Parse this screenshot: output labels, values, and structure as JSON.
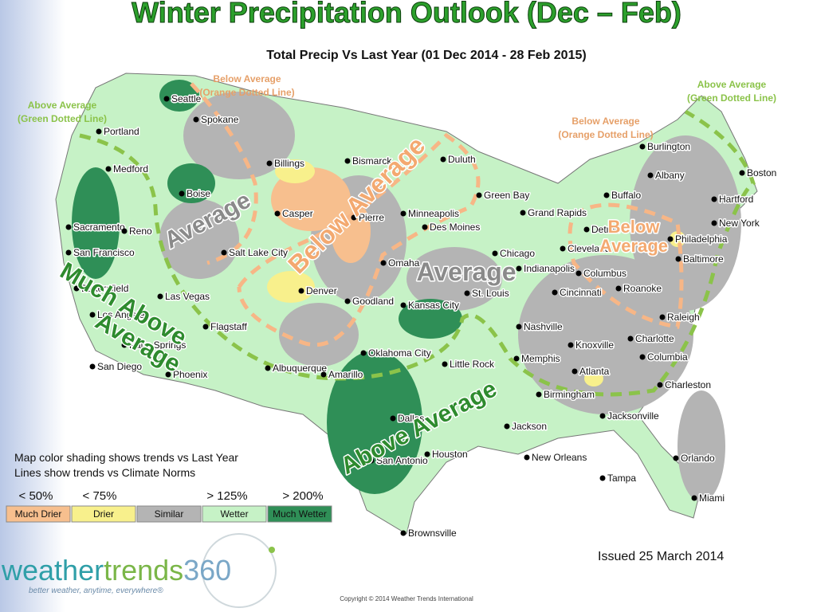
{
  "header": {
    "title": "Winter Precipitation Outlook (Dec – Feb)",
    "subtitle": "Total Precip Vs Last Year (01 Dec 2014 - 28 Feb 2015)"
  },
  "annotations": [
    {
      "lines": [
        "Below Average",
        "(Orange Dotted Line)"
      ]
    },
    {
      "lines": [
        "Above Average",
        "(Green Dotted Line)"
      ]
    },
    {
      "lines": [
        "Below Average",
        "(Orange Dotted Line)"
      ]
    },
    {
      "lines": [
        "Above Average",
        "(Green Dotted Line)"
      ]
    }
  ],
  "region_labels": [
    {
      "lines": [
        "Average"
      ]
    },
    {
      "lines": [
        "Below Average"
      ]
    },
    {
      "lines": [
        "Average"
      ]
    },
    {
      "lines": [
        "Below",
        "Average"
      ]
    },
    {
      "lines": [
        "Much Above",
        "Average"
      ]
    },
    {
      "lines": [
        "Above Average"
      ]
    }
  ],
  "cities": [
    "Seattle",
    "Portland",
    "Spokane",
    "Medford",
    "Boise",
    "Sacramento",
    "Reno",
    "San Francisco",
    "Bakersfield",
    "Las Vegas",
    "Los Angeles",
    "Flagstaff",
    "Palm Springs",
    "San Diego",
    "Phoenix",
    "Salt Lake City",
    "Billings",
    "Casper",
    "Bismarck",
    "Pierre",
    "Denver",
    "Goodland",
    "Albuquerque",
    "Amarillo",
    "Oklahoma City",
    "Dallas",
    "San Antonio",
    "Houston",
    "Brownsville",
    "Duluth",
    "Minneapolis",
    "Green Bay",
    "Des Moines",
    "Omaha",
    "Kansas City",
    "St. Louis",
    "Chicago",
    "Grand Rapids",
    "Detroit",
    "Indianapolis",
    "Cleveland",
    "Columbus",
    "Cincinnati",
    "Nashville",
    "Memphis",
    "Little Rock",
    "Knoxville",
    "Atlanta",
    "Birmingham",
    "Jackson",
    "New Orleans",
    "Jacksonville",
    "Orlando",
    "Tampa",
    "Miami",
    "Charleston",
    "Columbia",
    "Charlotte",
    "Raleigh",
    "Roanoke",
    "Baltimore",
    "Philadelphia",
    "New York",
    "Hartford",
    "Boston",
    "Albany",
    "Burlington",
    "Buffalo"
  ],
  "legend": {
    "notes": [
      "Map color shading shows trends vs Last Year",
      "Lines show trends vs Climate Norms"
    ],
    "thresholds": [
      "< 50%",
      "< 75%",
      "> 125%",
      "> 200%"
    ],
    "categories": [
      {
        "label": "Much Drier",
        "color": "#f7bf8e"
      },
      {
        "label": "Drier",
        "color": "#f8f08c"
      },
      {
        "label": "Similar",
        "color": "#b4b4b4"
      },
      {
        "label": "Wetter",
        "color": "#c6f2c6"
      },
      {
        "label": "Much Wetter",
        "color": "#2f8f57"
      }
    ]
  },
  "issued": "Issued 25 March 2014",
  "logo": {
    "parts": [
      "weather",
      "trends",
      "360"
    ],
    "tagline": "better weather, anytime, everywhere®"
  },
  "copyright": "Copyright © 2014 Weather Trends International"
}
